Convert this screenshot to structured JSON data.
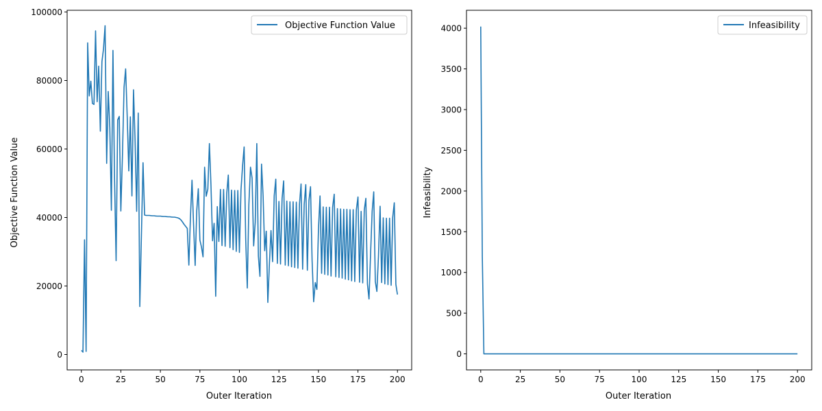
{
  "figure": {
    "background": "#ffffff"
  },
  "chart_data": [
    {
      "type": "line",
      "title": "",
      "xlabel": "Outer Iteration",
      "ylabel": "Objective Function Value",
      "xlim": [
        -9,
        209
      ],
      "ylim": [
        -4500,
        100500
      ],
      "xticks": [
        0,
        25,
        50,
        75,
        100,
        125,
        150,
        175,
        200
      ],
      "yticks": [
        0,
        20000,
        40000,
        60000,
        80000,
        100000
      ],
      "grid": false,
      "legend": "top-right",
      "series": [
        {
          "name": "Objective Function Value",
          "color": "#1f77b4",
          "x": [
            0,
            1,
            2,
            3,
            4,
            5,
            6,
            7,
            8,
            9,
            10,
            11,
            12,
            13,
            14,
            15,
            16,
            17,
            18,
            19,
            20,
            21,
            22,
            23,
            24,
            25,
            26,
            27,
            28,
            29,
            30,
            31,
            32,
            33,
            34,
            35,
            36,
            37,
            38,
            39,
            40,
            41,
            42,
            43,
            44,
            45,
            46,
            47,
            48,
            49,
            50,
            51,
            52,
            53,
            54,
            55,
            56,
            57,
            58,
            59,
            60,
            61,
            62,
            63,
            64,
            65,
            66,
            67,
            68,
            69,
            70,
            71,
            72,
            73,
            74,
            75,
            76,
            77,
            78,
            79,
            80,
            81,
            82,
            83,
            84,
            85,
            86,
            87,
            88,
            89,
            90,
            91,
            92,
            93,
            94,
            95,
            96,
            97,
            98,
            99,
            100,
            101,
            102,
            103,
            104,
            105,
            106,
            107,
            108,
            109,
            110,
            111,
            112,
            113,
            114,
            115,
            116,
            117,
            118,
            119,
            120,
            121,
            122,
            123,
            124,
            125,
            126,
            127,
            128,
            129,
            130,
            131,
            132,
            133,
            134,
            135,
            136,
            137,
            138,
            139,
            140,
            141,
            142,
            143,
            144,
            145,
            146,
            147,
            148,
            149,
            150,
            151,
            152,
            153,
            154,
            155,
            156,
            157,
            158,
            159,
            160,
            161,
            162,
            163,
            164,
            165,
            166,
            167,
            168,
            169,
            170,
            171,
            172,
            173,
            174,
            175,
            176,
            177,
            178,
            179,
            180,
            181,
            182,
            183,
            184,
            185,
            186,
            187,
            188,
            189,
            190,
            191,
            192,
            193,
            194,
            195,
            196,
            197,
            198,
            199,
            200
          ],
          "values": [
            1200,
            700,
            33500,
            900,
            91000,
            75500,
            79800,
            73300,
            73000,
            94500,
            73800,
            84200,
            65200,
            85500,
            89200,
            96000,
            55800,
            76800,
            66200,
            42100,
            88800,
            51500,
            27400,
            68500,
            69500,
            41900,
            58400,
            78000,
            83400,
            69500,
            53600,
            69400,
            46300,
            77300,
            62500,
            41800,
            70500,
            14000,
            34500,
            56000,
            40700,
            40600,
            40600,
            40600,
            40550,
            40500,
            40500,
            40450,
            40400,
            40400,
            40400,
            40350,
            40300,
            40300,
            40250,
            40200,
            40200,
            40150,
            40100,
            40100,
            40000,
            39900,
            39700,
            39300,
            38700,
            38000,
            37400,
            36800,
            26100,
            40000,
            50900,
            37800,
            26000,
            42000,
            48400,
            33400,
            31400,
            28500,
            54700,
            46200,
            48300,
            61600,
            49300,
            33200,
            38300,
            17000,
            43200,
            33000,
            48200,
            31800,
            48200,
            31600,
            47000,
            52400,
            31200,
            48000,
            30600,
            47900,
            30100,
            47900,
            29800,
            48000,
            55000,
            60600,
            33600,
            19400,
            43800,
            54700,
            51500,
            31700,
            38600,
            61600,
            28700,
            22800,
            55600,
            46200,
            30300,
            36000,
            15200,
            26500,
            36200,
            27100,
            46300,
            51200,
            26600,
            44700,
            26400,
            45500,
            50700,
            26100,
            44800,
            25900,
            44600,
            25600,
            44600,
            25400,
            44500,
            25200,
            43900,
            49800,
            24900,
            43900,
            49600,
            24600,
            44900,
            49000,
            27500,
            15400,
            21000,
            19000,
            36500,
            46300,
            23700,
            43100,
            23400,
            43000,
            23200,
            43000,
            22900,
            43000,
            46800,
            22700,
            42600,
            22500,
            42500,
            22300,
            42400,
            22000,
            42400,
            21800,
            42300,
            21500,
            42300,
            21300,
            42200,
            46000,
            21100,
            41800,
            20900,
            42200,
            45600,
            20600,
            16200,
            29500,
            41800,
            47500,
            21300,
            18400,
            28600,
            43300,
            21000,
            39900,
            20600,
            39800,
            20400,
            39800,
            20200,
            40000,
            44300,
            20500,
            17500
          ]
        }
      ]
    },
    {
      "type": "line",
      "title": "",
      "xlabel": "Outer Iteration",
      "ylabel": "Infeasibility",
      "xlim": [
        -9,
        209
      ],
      "ylim": [
        -197,
        4220
      ],
      "xticks": [
        0,
        25,
        50,
        75,
        100,
        125,
        150,
        175,
        200
      ],
      "yticks": [
        0,
        500,
        1000,
        1500,
        2000,
        2500,
        3000,
        3500,
        4000
      ],
      "grid": false,
      "legend": "top-right",
      "series": [
        {
          "name": "Infeasibility",
          "color": "#1f77b4",
          "x": [
            0,
            1,
            2,
            50,
            100,
            150,
            200
          ],
          "values": [
            4020,
            1200,
            0,
            0,
            0,
            0,
            0
          ]
        }
      ]
    }
  ]
}
